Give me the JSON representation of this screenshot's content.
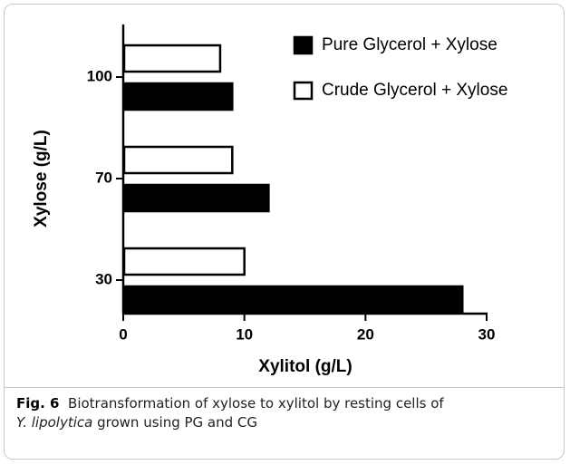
{
  "chart_data": {
    "type": "barh",
    "x_label": "Xylitol (g/L)",
    "y_label": "Xylose (g/L)",
    "categories": [
      "30",
      "70",
      "100"
    ],
    "series": [
      {
        "name": "Pure Glycerol + Xylose",
        "color": "#000000",
        "values": [
          28,
          12,
          9
        ]
      },
      {
        "name": "Crude Glycerol + Xylose",
        "color": "#ffffff",
        "values": [
          10,
          9,
          8
        ]
      }
    ],
    "xlim": [
      0,
      30
    ],
    "xticks": [
      0,
      10,
      20,
      30
    ],
    "legend": "upper right"
  },
  "caption": {
    "label": "Fig. 6",
    "text_before": "Biotransformation of xylose to xylitol by resting cells of",
    "species": "Y. lipolytica",
    "text_after": "grown using PG and CG"
  }
}
